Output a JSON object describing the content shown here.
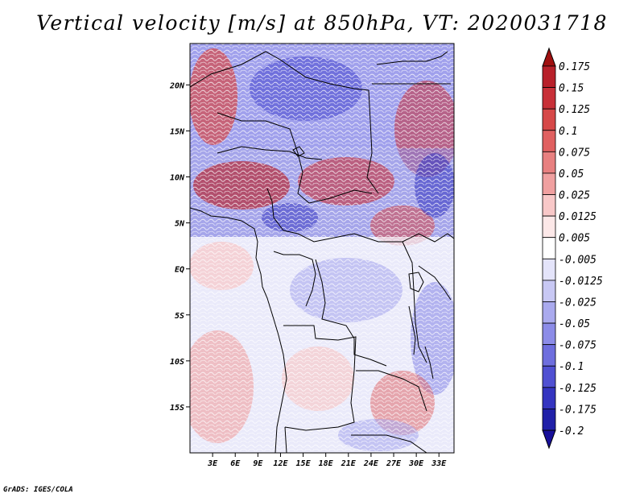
{
  "title": "Vertical velocity [m/s] at 850hPa, VT: 2020031718",
  "credit": "GrADS: IGES/COLA",
  "map": {
    "variable": "Vertical velocity",
    "units": "m/s",
    "level": "850hPa",
    "valid_time": "2020031718",
    "lon_range": [
      0,
      35
    ],
    "lat_range": [
      -20,
      24.5
    ],
    "lat_ticks": [
      {
        "value": 20,
        "label": "20N"
      },
      {
        "value": 15,
        "label": "15N"
      },
      {
        "value": 10,
        "label": "10N"
      },
      {
        "value": 5,
        "label": "5N"
      },
      {
        "value": 0,
        "label": "EQ"
      },
      {
        "value": -5,
        "label": "5S"
      },
      {
        "value": -10,
        "label": "10S"
      },
      {
        "value": -15,
        "label": "15S"
      }
    ],
    "lon_ticks": [
      {
        "value": 3,
        "label": "3E"
      },
      {
        "value": 6,
        "label": "6E"
      },
      {
        "value": 9,
        "label": "9E"
      },
      {
        "value": 12,
        "label": "12E"
      },
      {
        "value": 15,
        "label": "15E"
      },
      {
        "value": 18,
        "label": "18E"
      },
      {
        "value": 21,
        "label": "21E"
      },
      {
        "value": 24,
        "label": "24E"
      },
      {
        "value": 27,
        "label": "27E"
      },
      {
        "value": 30,
        "label": "30E"
      },
      {
        "value": 33,
        "label": "33E"
      }
    ]
  },
  "colorbar": {
    "labels": [
      "0.175",
      "0.15",
      "0.125",
      "0.1",
      "0.075",
      "0.05",
      "0.025",
      "0.0125",
      "0.005",
      "-0.005",
      "-0.0125",
      "-0.025",
      "-0.05",
      "-0.075",
      "-0.1",
      "-0.125",
      "-0.175",
      "-0.2"
    ],
    "colors": [
      "#a01010",
      "#b8202a",
      "#c83038",
      "#d64848",
      "#e06060",
      "#e88080",
      "#f0a0a0",
      "#f8c8c8",
      "#fce8e8",
      "#ffffff",
      "#e4e4fa",
      "#c8c8f4",
      "#aaaaee",
      "#8c8ce8",
      "#6e6ede",
      "#5050d2",
      "#3434c0",
      "#2020a8",
      "#18109a"
    ]
  }
}
